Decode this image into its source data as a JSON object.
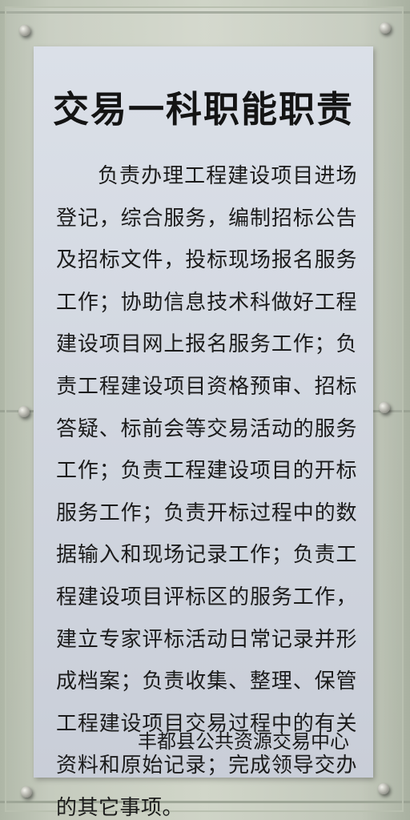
{
  "sign": {
    "title": "交易一科职能职责",
    "body": "负责办理工程建设项目进场登记，综合服务，编制招标公告及招标文件，投标现场报名服务工作；协助信息技术科做好工程建设项目网上报名服务工作；负责工程建设项目资格预审、招标答疑、标前会等交易活动的服务工作；负责工程建设项目的开标服务工作；负责开标过程中的数据输入和现场记录工作；负责工程建设项目评标区的服务工作，建立专家评标活动日常记录并形成档案；负责收集、整理、保管工程建设项目交易过程中的有关资料和原始记录；完成领导交办的其它事项。",
    "footer": "丰都县公共资源交易中心"
  },
  "colors": {
    "panel": "#d4d9e2",
    "text": "#1b1b1b",
    "wall": "#c3c9bb"
  }
}
